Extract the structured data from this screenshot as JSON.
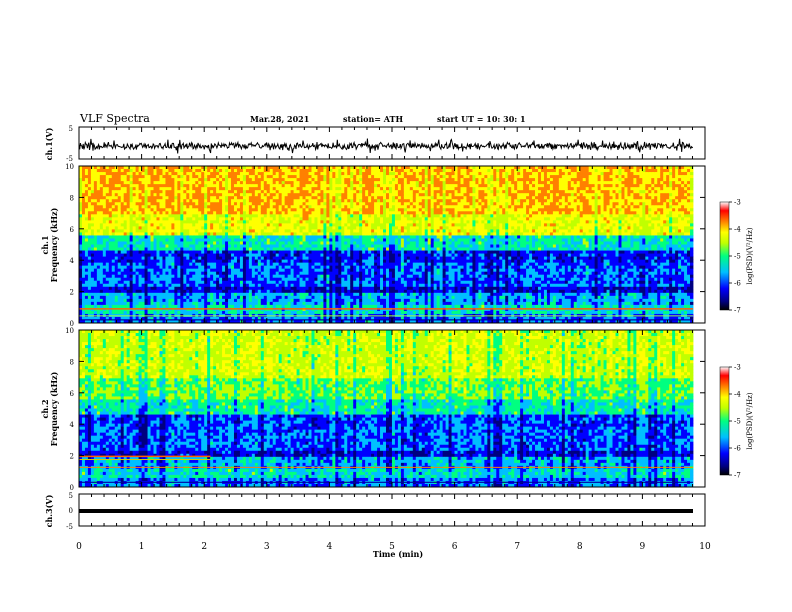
{
  "header": {
    "title": "VLF Spectra",
    "date": "Mar.28, 2021",
    "station": "station= ATH",
    "start": "start  UT  =    10: 30: 1"
  },
  "chart_data": [
    {
      "type": "line",
      "name": "ch1-waveform",
      "ylabel": "ch.1(V)",
      "ylim": [
        -5,
        5
      ],
      "yticks": [
        "5",
        "-5"
      ]
    },
    {
      "type": "heatmap",
      "name": "ch1-spectrogram",
      "ylabel_top": "ch.1",
      "ylabel": "Frequency  (kHz)",
      "ylim": [
        0,
        10
      ],
      "yticks": [
        "0",
        "2",
        "4",
        "6",
        "8",
        "10"
      ],
      "colorbar": {
        "label": "log(PSD)(V²/Hz)",
        "ticks": [
          "-3",
          "-4",
          "-5",
          "-6",
          "-7"
        ],
        "range": [
          -7,
          -3
        ]
      }
    },
    {
      "type": "heatmap",
      "name": "ch2-spectrogram",
      "ylabel_top": "ch.2",
      "ylabel": "Frequency  (kHz)",
      "ylim": [
        0,
        10
      ],
      "yticks": [
        "0",
        "2",
        "4",
        "6",
        "8",
        "10"
      ],
      "colorbar": {
        "label": "log(PSD)(V²/Hz)",
        "ticks": [
          "-3",
          "-4",
          "-5",
          "-6",
          "-7"
        ],
        "range": [
          -7,
          -3
        ]
      }
    },
    {
      "type": "line",
      "name": "ch3-waveform",
      "ylabel": "ch.3(V)",
      "ylim": [
        -5,
        5
      ],
      "yticks": [
        "5",
        "0",
        "-5"
      ]
    }
  ],
  "xaxis": {
    "label": "Time  (min)",
    "range": [
      0,
      10
    ],
    "ticks": [
      "0",
      "1",
      "2",
      "3",
      "4",
      "5",
      "6",
      "7",
      "8",
      "9",
      "10"
    ]
  },
  "colormap": [
    "#000080",
    "#0000ff",
    "#00bfff",
    "#00ff80",
    "#c0ff00",
    "#ffff00",
    "#ff8000",
    "#ff0000",
    "#ffffff"
  ]
}
